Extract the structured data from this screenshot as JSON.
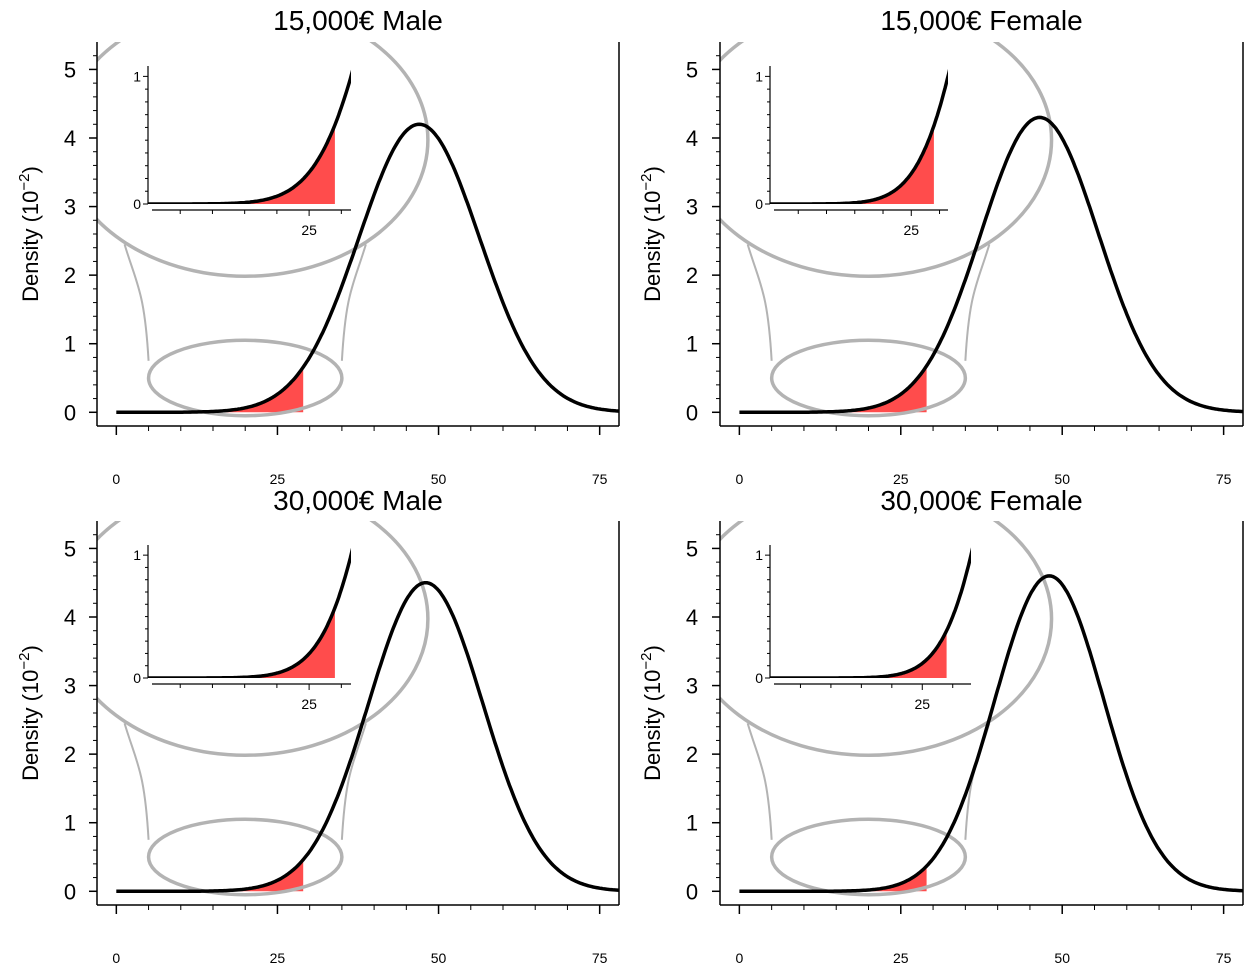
{
  "chart_data": [
    {
      "type": "line",
      "title": "15,000€ Male",
      "ylabel": "Density (10",
      "ylabel_exponent": "−2",
      "ylabel_close": ")",
      "x_ticks": [
        0,
        25,
        50,
        75
      ],
      "y_ticks": [
        0,
        1,
        2,
        3,
        4,
        5
      ],
      "xlim": [
        -3,
        78
      ],
      "ylim": [
        -0.2,
        5.4
      ],
      "series": [
        {
          "curve": {
            "mean": 47,
            "sd": 9.35,
            "peak": 4.2
          }
        }
      ],
      "shaded_region": {
        "x_from": 0,
        "x_to": 29,
        "color": "#ff4c4c"
      },
      "highlight_ellipse": {
        "cx": 20,
        "cy": 0.5,
        "rx": 15,
        "ry": 0.55
      },
      "inset": {
        "title": "",
        "y_ticks": [
          0,
          1
        ],
        "x_ticks": [
          25
        ],
        "xlim": [
          0,
          31.5
        ],
        "ylim": [
          0,
          1.05
        ],
        "shade_to": 29
      }
    },
    {
      "type": "line",
      "title": "15,000€ Female",
      "ylabel": "Density (10",
      "ylabel_exponent": "−2",
      "ylabel_close": ")",
      "x_ticks": [
        0,
        25,
        50,
        75
      ],
      "y_ticks": [
        0,
        1,
        2,
        3,
        4,
        5
      ],
      "xlim": [
        -3,
        78
      ],
      "ylim": [
        -0.2,
        5.4
      ],
      "series": [
        {
          "curve": {
            "mean": 46.5,
            "sd": 9.1,
            "peak": 4.3
          }
        }
      ],
      "shaded_region": {
        "x_from": 0,
        "x_to": 29,
        "color": "#ff4c4c"
      },
      "highlight_ellipse": {
        "cx": 20,
        "cy": 0.5,
        "rx": 15,
        "ry": 0.55
      },
      "inset": {
        "title": "",
        "y_ticks": [
          0,
          1
        ],
        "x_ticks": [
          25
        ],
        "xlim": [
          0,
          31.5
        ],
        "ylim": [
          0,
          1.05
        ],
        "shade_to": 29
      }
    },
    {
      "type": "line",
      "title": "30,000€ Male",
      "ylabel": "Density (10",
      "ylabel_exponent": "−2",
      "ylabel_close": ")",
      "x_ticks": [
        0,
        25,
        50,
        75
      ],
      "y_ticks": [
        0,
        1,
        2,
        3,
        4,
        5
      ],
      "xlim": [
        -3,
        78
      ],
      "ylim": [
        -0.2,
        5.4
      ],
      "series": [
        {
          "curve": {
            "mean": 48,
            "sd": 8.9,
            "peak": 4.5
          }
        }
      ],
      "shaded_region": {
        "x_from": 0,
        "x_to": 29,
        "color": "#ff4c4c"
      },
      "highlight_ellipse": {
        "cx": 20,
        "cy": 0.5,
        "rx": 15,
        "ry": 0.55
      },
      "inset": {
        "title": "",
        "y_ticks": [
          0,
          1
        ],
        "x_ticks": [
          25
        ],
        "xlim": [
          0,
          31.5
        ],
        "ylim": [
          0,
          1.05
        ],
        "shade_to": 29
      }
    },
    {
      "type": "line",
      "title": "30,000€ Female",
      "ylabel": "Density (10",
      "ylabel_exponent": "−2",
      "ylabel_close": ")",
      "x_ticks": [
        0,
        25,
        50,
        75
      ],
      "y_ticks": [
        0,
        1,
        2,
        3,
        4,
        5
      ],
      "xlim": [
        -3,
        78
      ],
      "ylim": [
        -0.2,
        5.4
      ],
      "series": [
        {
          "curve": {
            "mean": 48,
            "sd": 8.45,
            "peak": 4.6
          }
        }
      ],
      "shaded_region": {
        "x_from": 0,
        "x_to": 29,
        "color": "#ff4c4c"
      },
      "highlight_ellipse": {
        "cx": 20,
        "cy": 0.5,
        "rx": 15,
        "ry": 0.55
      },
      "inset": {
        "title": "",
        "y_ticks": [
          0,
          1
        ],
        "x_ticks": [
          25
        ],
        "xlim": [
          0,
          33
        ],
        "ylim": [
          0,
          1.05
        ],
        "shade_to": 29
      }
    }
  ],
  "colors": {
    "curve": "#000000",
    "shade": "#ff4c4c",
    "ellipse": "#b3b3b3",
    "connector": "#b3b3b3",
    "axis": "#000000"
  }
}
